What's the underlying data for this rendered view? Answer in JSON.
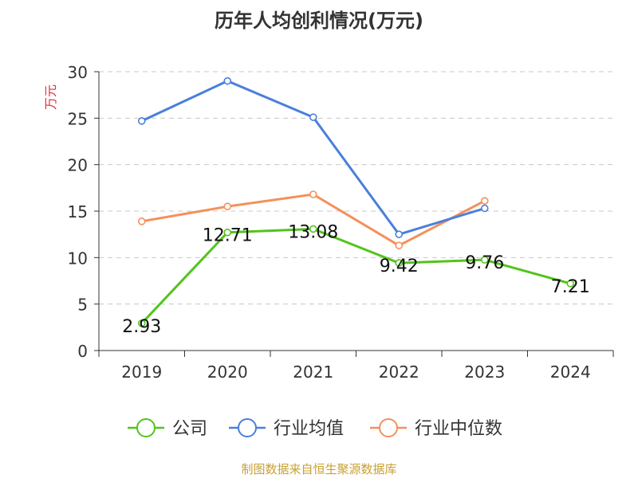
{
  "chart_data": {
    "type": "line",
    "title": "历年人均创利情况(万元)",
    "ylabel": "万元",
    "xlabel": "",
    "categories": [
      "2019",
      "2020",
      "2021",
      "2022",
      "2023",
      "2024"
    ],
    "ylim": [
      0,
      30
    ],
    "yticks": [
      0,
      5,
      10,
      15,
      20,
      25,
      30
    ],
    "grid": true,
    "legend_position": "bottom",
    "series": [
      {
        "name": "公司",
        "color": "#52c41a",
        "values": [
          2.93,
          12.71,
          13.08,
          9.42,
          9.76,
          7.21
        ],
        "labels": [
          "2.93",
          "12.71",
          "13.08",
          "9.42",
          "9.76",
          "7.21"
        ]
      },
      {
        "name": "行业均值",
        "color": "#4a7fdb",
        "values": [
          24.7,
          29.0,
          25.1,
          12.5,
          15.3,
          null
        ]
      },
      {
        "name": "行业中位数",
        "color": "#f5905a",
        "values": [
          13.9,
          15.5,
          16.8,
          11.3,
          16.1,
          null
        ]
      }
    ]
  },
  "colors": {
    "ylabel": "#e0303a",
    "source": "#c8a032",
    "title": "#333333"
  },
  "source": "制图数据来自恒生聚源数据库"
}
